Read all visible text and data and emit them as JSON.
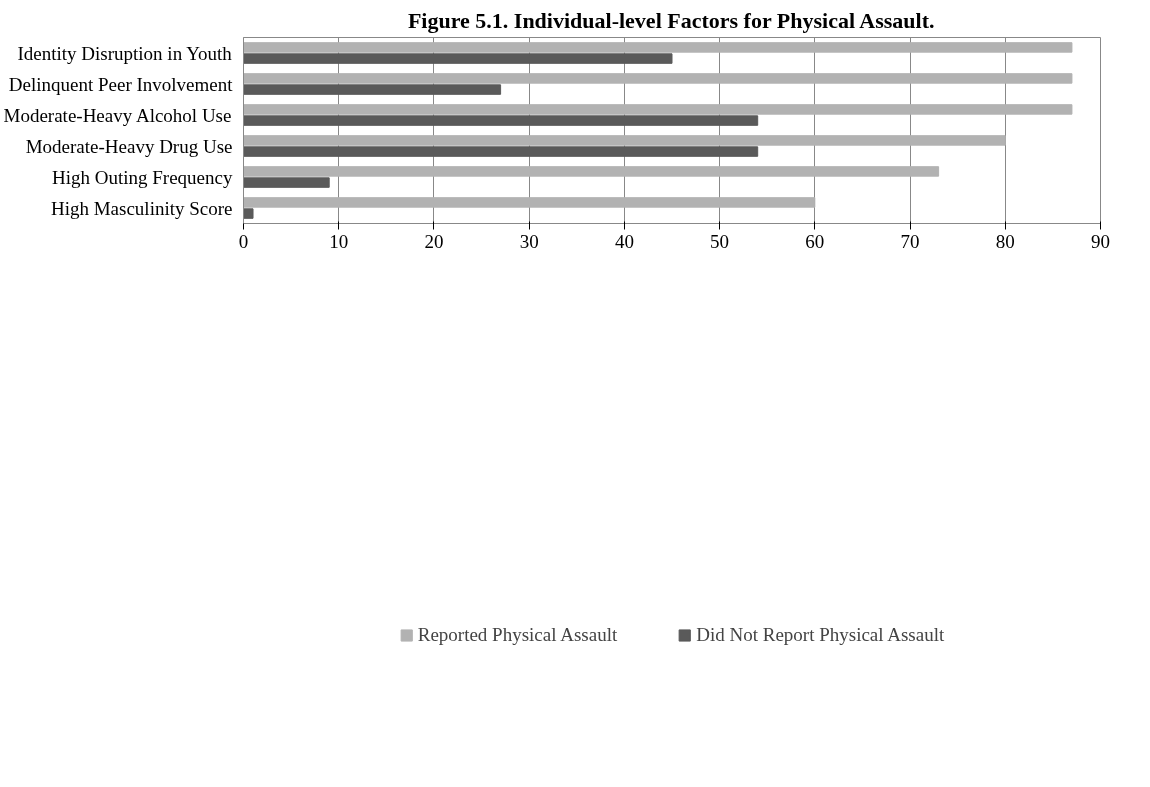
{
  "chart_data": {
    "type": "bar",
    "orientation": "horizontal",
    "title": "Figure 5.1. Individual-level Factors for Physical Assault.",
    "categories": [
      "Identity Disruption in Youth",
      "Delinquent Peer Involvement",
      "Moderate-Heavy Alcohol Use",
      "Moderate-Heavy Drug Use",
      "High Outing Frequency",
      "High Masculinity Score"
    ],
    "series": [
      {
        "name": "Reported Physical Assault",
        "color": "#b2b2b2",
        "values": [
          87,
          87,
          87,
          80,
          73,
          60
        ]
      },
      {
        "name": "Did Not Report Physical Assault",
        "color": "#5a5a5a",
        "values": [
          45,
          27,
          54,
          54,
          9,
          1
        ]
      }
    ],
    "xlim": [
      0,
      90
    ],
    "xticks": [
      0,
      10,
      20,
      30,
      40,
      50,
      60,
      70,
      80,
      90
    ],
    "grid": "x",
    "legend": "bottom"
  }
}
